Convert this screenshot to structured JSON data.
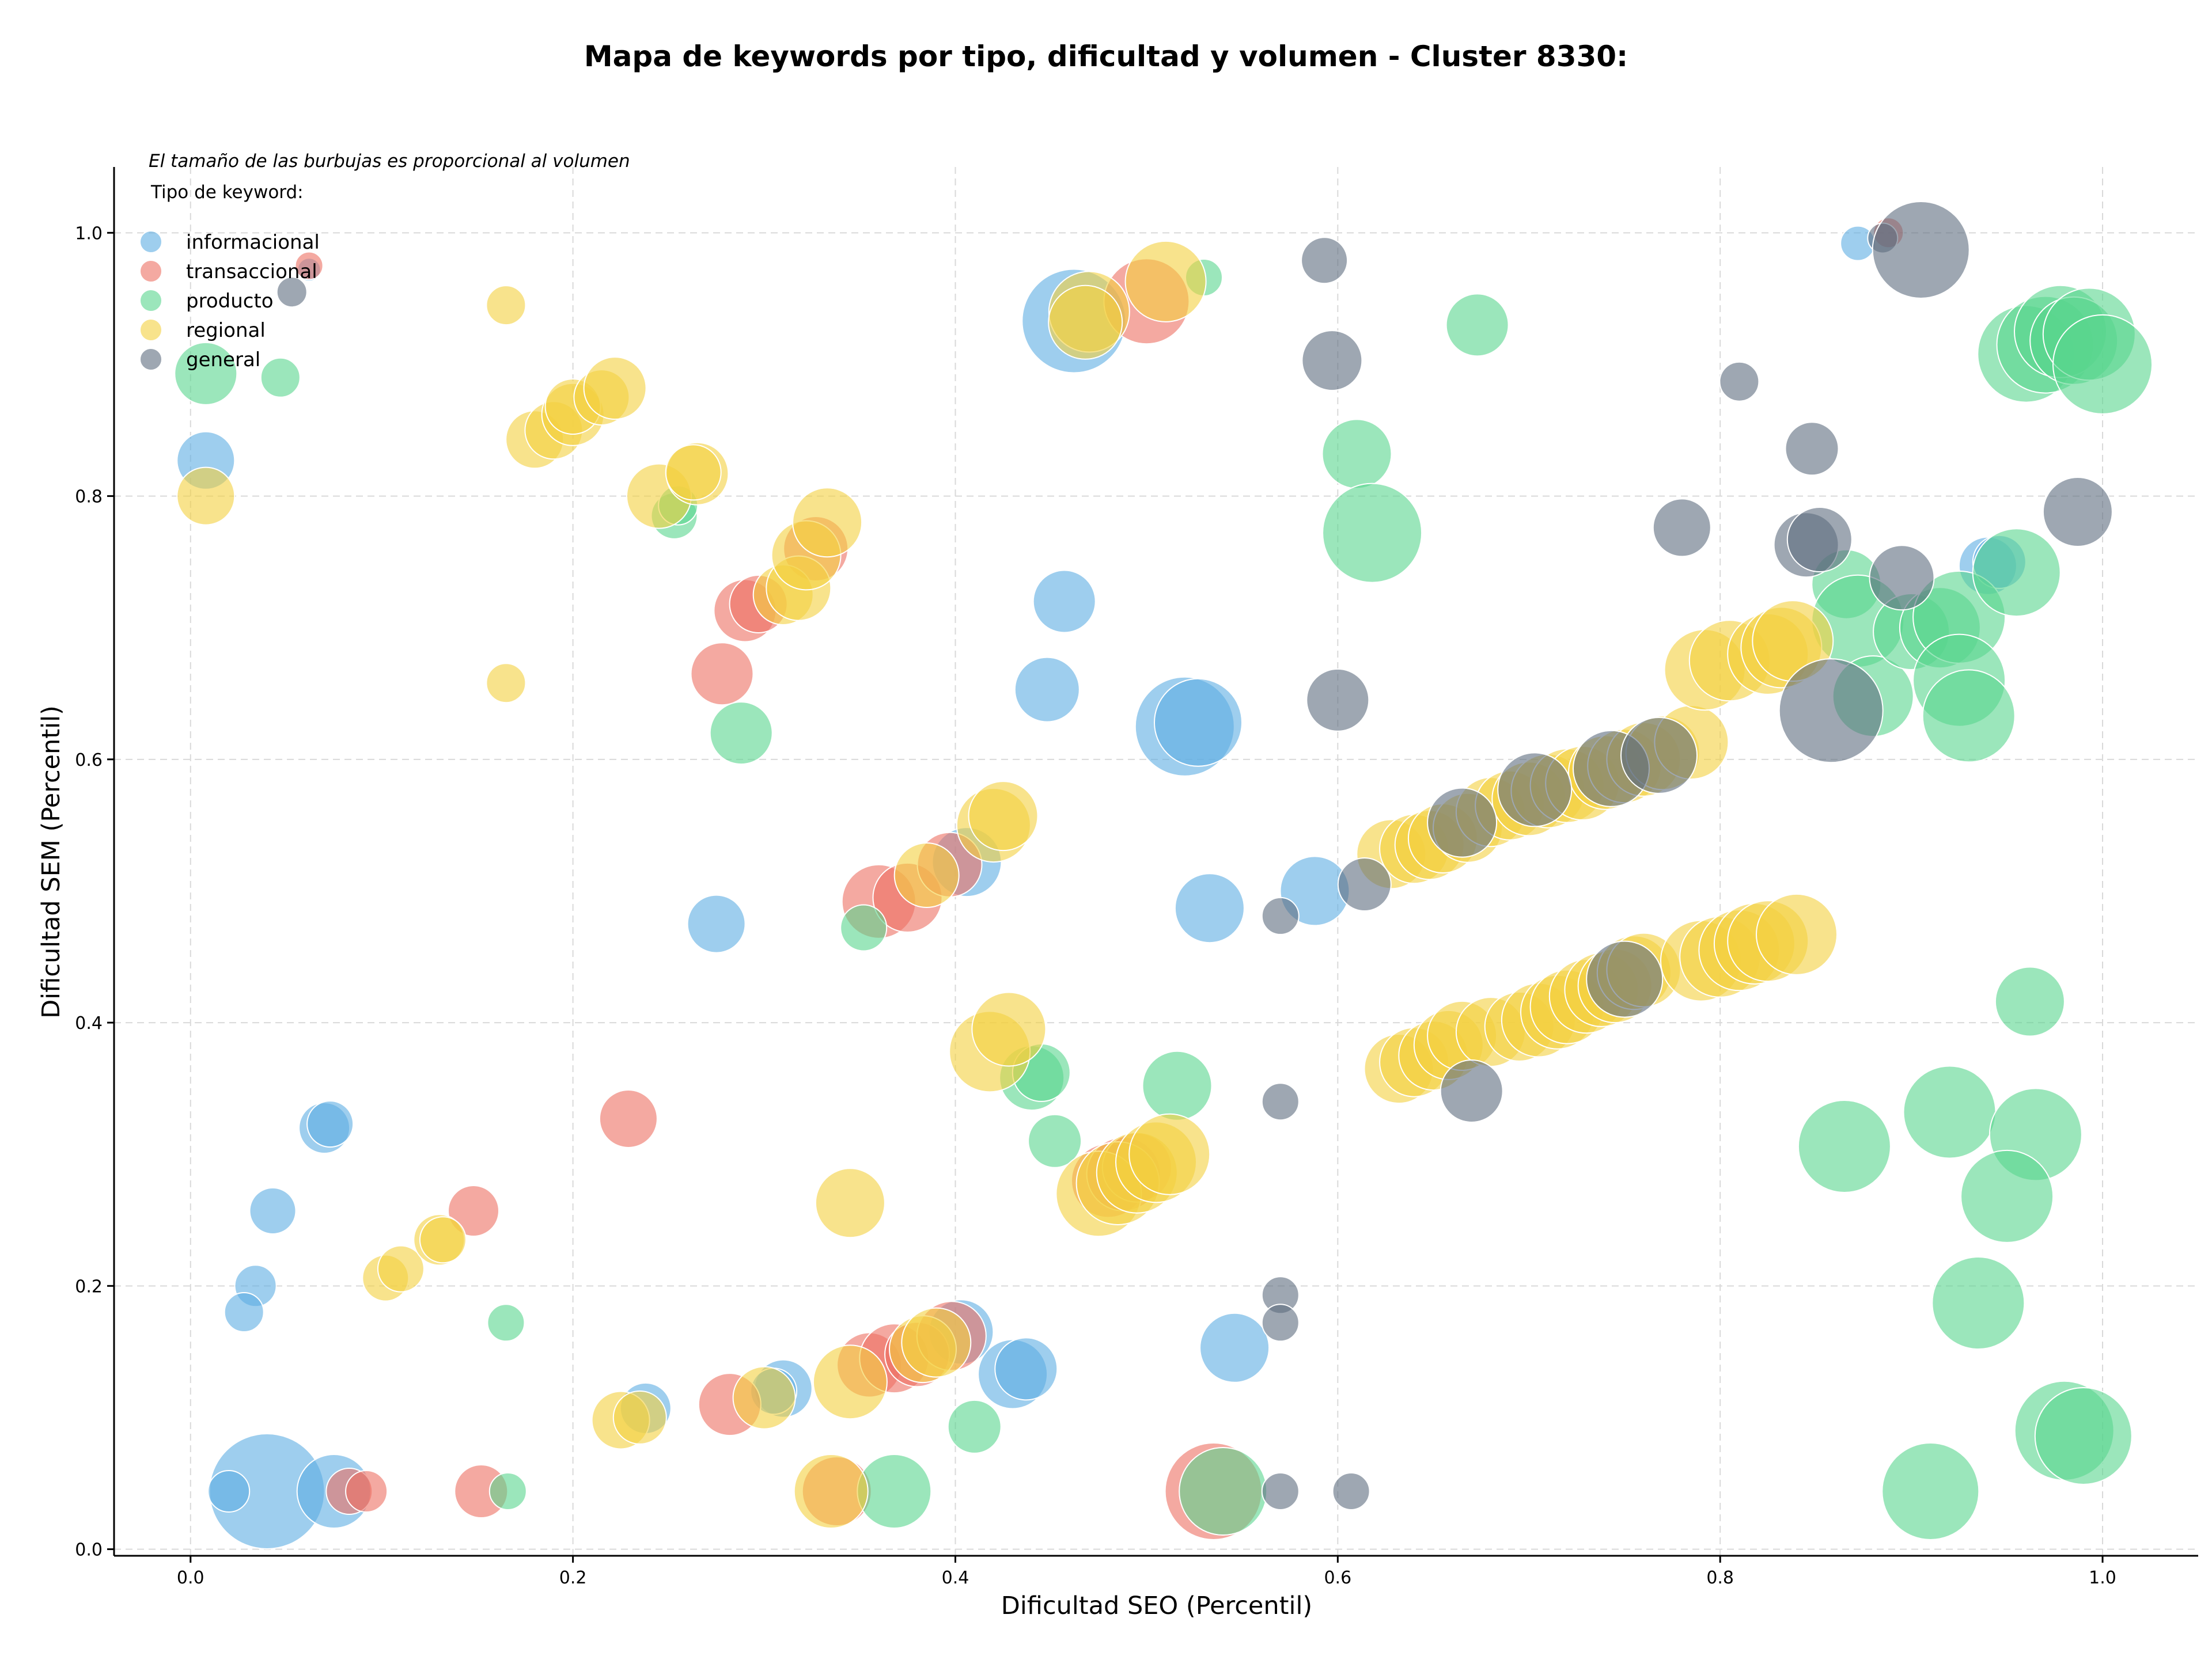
{
  "chart_data": {
    "type": "scatter",
    "title": "Mapa de keywords por tipo, dificultad y volumen - Cluster 8330:",
    "xlabel": "Dificultad SEO (Percentil)",
    "ylabel": "Dificultad SEM (Percentil)",
    "xlim": [
      -0.04,
      1.05
    ],
    "ylim": [
      -0.005,
      1.05
    ],
    "xticks": [
      0.0,
      0.2,
      0.4,
      0.6,
      0.8,
      1.0
    ],
    "yticks": [
      0.0,
      0.2,
      0.4,
      0.6,
      0.8,
      1.0
    ],
    "xtick_labels": [
      "0.0",
      "0.2",
      "0.4",
      "0.6",
      "0.8",
      "1.0"
    ],
    "ytick_labels": [
      "0.0",
      "0.2",
      "0.4",
      "0.6",
      "0.8",
      "1.0"
    ],
    "grid": true,
    "annotation": "El tamaño de las burbujas es proporcional al volumen",
    "legend_title": "Tipo de keyword:",
    "legend_position": "top-left",
    "series": [
      {
        "name": "informacional",
        "color": "#5DADE2",
        "points": [
          [
            0.04,
            0.044,
            5
          ],
          [
            0.075,
            0.044,
            3.2
          ],
          [
            0.02,
            0.044,
            1.8
          ],
          [
            0.008,
            0.827,
            2.5
          ],
          [
            0.07,
            0.32,
            2.2
          ],
          [
            0.073,
            0.323,
            2
          ],
          [
            0.043,
            0.257,
            2
          ],
          [
            0.034,
            0.2,
            1.8
          ],
          [
            0.028,
            0.18,
            1.7
          ],
          [
            0.062,
            0.972,
            1
          ],
          [
            0.275,
            0.475,
            2.5
          ],
          [
            0.238,
            0.107,
            2.2
          ],
          [
            0.31,
            0.122,
            2.5
          ],
          [
            0.305,
            0.12,
            2
          ],
          [
            0.403,
            0.165,
            2.8
          ],
          [
            0.43,
            0.133,
            3
          ],
          [
            0.437,
            0.137,
            2.7
          ],
          [
            0.406,
            0.522,
            3
          ],
          [
            0.457,
            0.72,
            2.7
          ],
          [
            0.448,
            0.653,
            2.8
          ],
          [
            0.462,
            0.933,
            4.5
          ],
          [
            0.52,
            0.625,
            4.3
          ],
          [
            0.527,
            0.628,
            3.8
          ],
          [
            0.533,
            0.487,
            3
          ],
          [
            0.546,
            0.153,
            3
          ],
          [
            0.588,
            0.5,
            3
          ],
          [
            0.872,
            0.992,
            1.5
          ],
          [
            0.94,
            0.747,
            2.5
          ],
          [
            0.946,
            0.75,
            2.3
          ]
        ]
      },
      {
        "name": "transaccional",
        "color": "#EC7063",
        "points": [
          [
            0.062,
            0.975,
            1.2
          ],
          [
            0.083,
            0.044,
            2
          ],
          [
            0.092,
            0.044,
            1.8
          ],
          [
            0.152,
            0.044,
            2.3
          ],
          [
            0.148,
            0.257,
            2.2
          ],
          [
            0.229,
            0.327,
            2.5
          ],
          [
            0.282,
            0.11,
            2.7
          ],
          [
            0.278,
            0.665,
            2.7
          ],
          [
            0.29,
            0.713,
            2.7
          ],
          [
            0.297,
            0.718,
            2.5
          ],
          [
            0.327,
            0.76,
            2.8
          ],
          [
            0.338,
            0.044,
            3
          ],
          [
            0.36,
            0.492,
            3.2
          ],
          [
            0.375,
            0.495,
            3
          ],
          [
            0.355,
            0.14,
            2.8
          ],
          [
            0.368,
            0.145,
            3
          ],
          [
            0.38,
            0.148,
            2.8
          ],
          [
            0.397,
            0.52,
            2.8
          ],
          [
            0.398,
            0.162,
            3
          ],
          [
            0.48,
            0.28,
            3.2
          ],
          [
            0.488,
            0.285,
            3.2
          ],
          [
            0.495,
            0.29,
            3
          ],
          [
            0.5,
            0.948,
            3.7
          ],
          [
            0.535,
            0.044,
            4.2
          ],
          [
            0.888,
            1.0,
            1.3
          ]
        ]
      },
      {
        "name": "producto",
        "color": "#58D68D",
        "points": [
          [
            0.008,
            0.893,
            2.7
          ],
          [
            0.047,
            0.89,
            1.7
          ],
          [
            0.165,
            0.172,
            1.6
          ],
          [
            0.166,
            0.044,
            1.6
          ],
          [
            0.253,
            0.785,
            2
          ],
          [
            0.255,
            0.793,
            1.7
          ],
          [
            0.288,
            0.62,
            2.7
          ],
          [
            0.352,
            0.472,
            2
          ],
          [
            0.368,
            0.044,
            3.2
          ],
          [
            0.41,
            0.093,
            2.3
          ],
          [
            0.44,
            0.358,
            2.8
          ],
          [
            0.445,
            0.362,
            2.5
          ],
          [
            0.452,
            0.31,
            2.3
          ],
          [
            0.516,
            0.352,
            3
          ],
          [
            0.53,
            0.966,
            1.6
          ],
          [
            0.54,
            0.044,
            3.8
          ],
          [
            0.61,
            0.832,
            3
          ],
          [
            0.618,
            0.772,
            4.3
          ],
          [
            0.673,
            0.93,
            2.7
          ],
          [
            0.866,
            0.733,
            3
          ],
          [
            0.872,
            0.705,
            4
          ],
          [
            0.88,
            0.648,
            3.5
          ],
          [
            0.9,
            0.697,
            3.3
          ],
          [
            0.915,
            0.7,
            3.5
          ],
          [
            0.925,
            0.708,
            4
          ],
          [
            0.925,
            0.66,
            4
          ],
          [
            0.93,
            0.633,
            4
          ],
          [
            0.955,
            0.742,
            3.8
          ],
          [
            0.96,
            0.908,
            4.2
          ],
          [
            0.97,
            0.915,
            4.2
          ],
          [
            0.978,
            0.925,
            4
          ],
          [
            0.985,
            0.918,
            3.8
          ],
          [
            0.993,
            0.923,
            4
          ],
          [
            1.0,
            0.9,
            4.3
          ],
          [
            0.962,
            0.416,
            3
          ],
          [
            0.865,
            0.306,
            4
          ],
          [
            0.92,
            0.332,
            4
          ],
          [
            0.965,
            0.315,
            4
          ],
          [
            0.95,
            0.268,
            4
          ],
          [
            0.935,
            0.187,
            4
          ],
          [
            0.98,
            0.09,
            4.3
          ],
          [
            0.99,
            0.086,
            4.2
          ],
          [
            0.91,
            0.044,
            4.2
          ]
        ]
      },
      {
        "name": "regional",
        "color": "#F4D03F",
        "points": [
          [
            0.008,
            0.8,
            2.5
          ],
          [
            0.165,
            0.945,
            1.7
          ],
          [
            0.165,
            0.658,
            1.7
          ],
          [
            0.18,
            0.843,
            2.5
          ],
          [
            0.19,
            0.85,
            2.5
          ],
          [
            0.2,
            0.862,
            2.7
          ],
          [
            0.2,
            0.868,
            2.4
          ],
          [
            0.215,
            0.875,
            2.4
          ],
          [
            0.222,
            0.882,
            2.7
          ],
          [
            0.245,
            0.8,
            2.8
          ],
          [
            0.265,
            0.817,
            2.7
          ],
          [
            0.263,
            0.818,
            2.4
          ],
          [
            0.31,
            0.725,
            2.6
          ],
          [
            0.318,
            0.73,
            2.8
          ],
          [
            0.322,
            0.755,
            3
          ],
          [
            0.333,
            0.78,
            3
          ],
          [
            0.102,
            0.206,
            2
          ],
          [
            0.11,
            0.213,
            2
          ],
          [
            0.13,
            0.235,
            2.2
          ],
          [
            0.132,
            0.235,
            2
          ],
          [
            0.225,
            0.098,
            2.5
          ],
          [
            0.235,
            0.1,
            2.3
          ],
          [
            0.3,
            0.115,
            2.7
          ],
          [
            0.335,
            0.044,
            3.2
          ],
          [
            0.345,
            0.127,
            3.2
          ],
          [
            0.345,
            0.263,
            3
          ],
          [
            0.383,
            0.152,
            2.9
          ],
          [
            0.39,
            0.157,
            3
          ],
          [
            0.385,
            0.512,
            2.8
          ],
          [
            0.418,
            0.378,
            3.5
          ],
          [
            0.428,
            0.395,
            3.2
          ],
          [
            0.42,
            0.55,
            3.2
          ],
          [
            0.425,
            0.557,
            3
          ],
          [
            0.47,
            0.94,
            3.5
          ],
          [
            0.468,
            0.932,
            3.2
          ],
          [
            0.51,
            0.963,
            3.5
          ],
          [
            0.475,
            0.27,
            3.7
          ],
          [
            0.485,
            0.278,
            3.6
          ],
          [
            0.495,
            0.286,
            3.5
          ],
          [
            0.505,
            0.294,
            3.5
          ],
          [
            0.512,
            0.3,
            3.5
          ],
          [
            0.632,
            0.365,
            3
          ],
          [
            0.64,
            0.37,
            3
          ],
          [
            0.65,
            0.375,
            3
          ],
          [
            0.658,
            0.383,
            3
          ],
          [
            0.665,
            0.39,
            3
          ],
          [
            0.68,
            0.393,
            3
          ],
          [
            0.695,
            0.397,
            3
          ],
          [
            0.705,
            0.402,
            3.2
          ],
          [
            0.715,
            0.408,
            3.2
          ],
          [
            0.72,
            0.412,
            3.2
          ],
          [
            0.73,
            0.42,
            3.2
          ],
          [
            0.738,
            0.425,
            3.2
          ],
          [
            0.745,
            0.428,
            3.2
          ],
          [
            0.755,
            0.438,
            3.2
          ],
          [
            0.76,
            0.44,
            3.2
          ],
          [
            0.79,
            0.447,
            3.5
          ],
          [
            0.8,
            0.45,
            3.5
          ],
          [
            0.81,
            0.455,
            3.5
          ],
          [
            0.818,
            0.46,
            3.5
          ],
          [
            0.825,
            0.462,
            3.5
          ],
          [
            0.84,
            0.467,
            3.5
          ],
          [
            0.628,
            0.528,
            3
          ],
          [
            0.64,
            0.532,
            3
          ],
          [
            0.648,
            0.535,
            3
          ],
          [
            0.655,
            0.54,
            3
          ],
          [
            0.668,
            0.548,
            3
          ],
          [
            0.68,
            0.56,
            3
          ],
          [
            0.69,
            0.565,
            3
          ],
          [
            0.7,
            0.57,
            3.2
          ],
          [
            0.71,
            0.576,
            3.2
          ],
          [
            0.72,
            0.58,
            3.2
          ],
          [
            0.728,
            0.582,
            3.2
          ],
          [
            0.74,
            0.59,
            3.2
          ],
          [
            0.75,
            0.595,
            3.2
          ],
          [
            0.76,
            0.6,
            3.2
          ],
          [
            0.77,
            0.605,
            3.2
          ],
          [
            0.785,
            0.613,
            3.2
          ],
          [
            0.792,
            0.668,
            3.5
          ],
          [
            0.805,
            0.675,
            3.5
          ],
          [
            0.825,
            0.68,
            3.5
          ],
          [
            0.832,
            0.685,
            3.5
          ],
          [
            0.838,
            0.69,
            3.5
          ]
        ]
      },
      {
        "name": "general",
        "color": "#5D6D7E",
        "points": [
          [
            0.053,
            0.955,
            1.3
          ],
          [
            0.57,
            0.481,
            1.6
          ],
          [
            0.57,
            0.34,
            1.6
          ],
          [
            0.57,
            0.193,
            1.6
          ],
          [
            0.57,
            0.172,
            1.6
          ],
          [
            0.57,
            0.044,
            1.6
          ],
          [
            0.593,
            0.979,
            2
          ],
          [
            0.597,
            0.903,
            2.6
          ],
          [
            0.6,
            0.645,
            2.7
          ],
          [
            0.614,
            0.505,
            2.3
          ],
          [
            0.607,
            0.044,
            1.6
          ],
          [
            0.67,
            0.348,
            2.7
          ],
          [
            0.665,
            0.552,
            3
          ],
          [
            0.703,
            0.577,
            3.2
          ],
          [
            0.743,
            0.593,
            3.3
          ],
          [
            0.75,
            0.433,
            3.3
          ],
          [
            0.768,
            0.603,
            3.3
          ],
          [
            0.78,
            0.776,
            2.5
          ],
          [
            0.81,
            0.887,
            1.7
          ],
          [
            0.848,
            0.836,
            2.3
          ],
          [
            0.845,
            0.763,
            2.8
          ],
          [
            0.852,
            0.767,
            2.8
          ],
          [
            0.858,
            0.637,
            4.5
          ],
          [
            0.895,
            0.738,
            2.8
          ],
          [
            0.885,
            0.996,
            1.3
          ],
          [
            0.905,
            0.987,
            4.2
          ],
          [
            0.987,
            0.788,
            3
          ]
        ]
      }
    ]
  }
}
